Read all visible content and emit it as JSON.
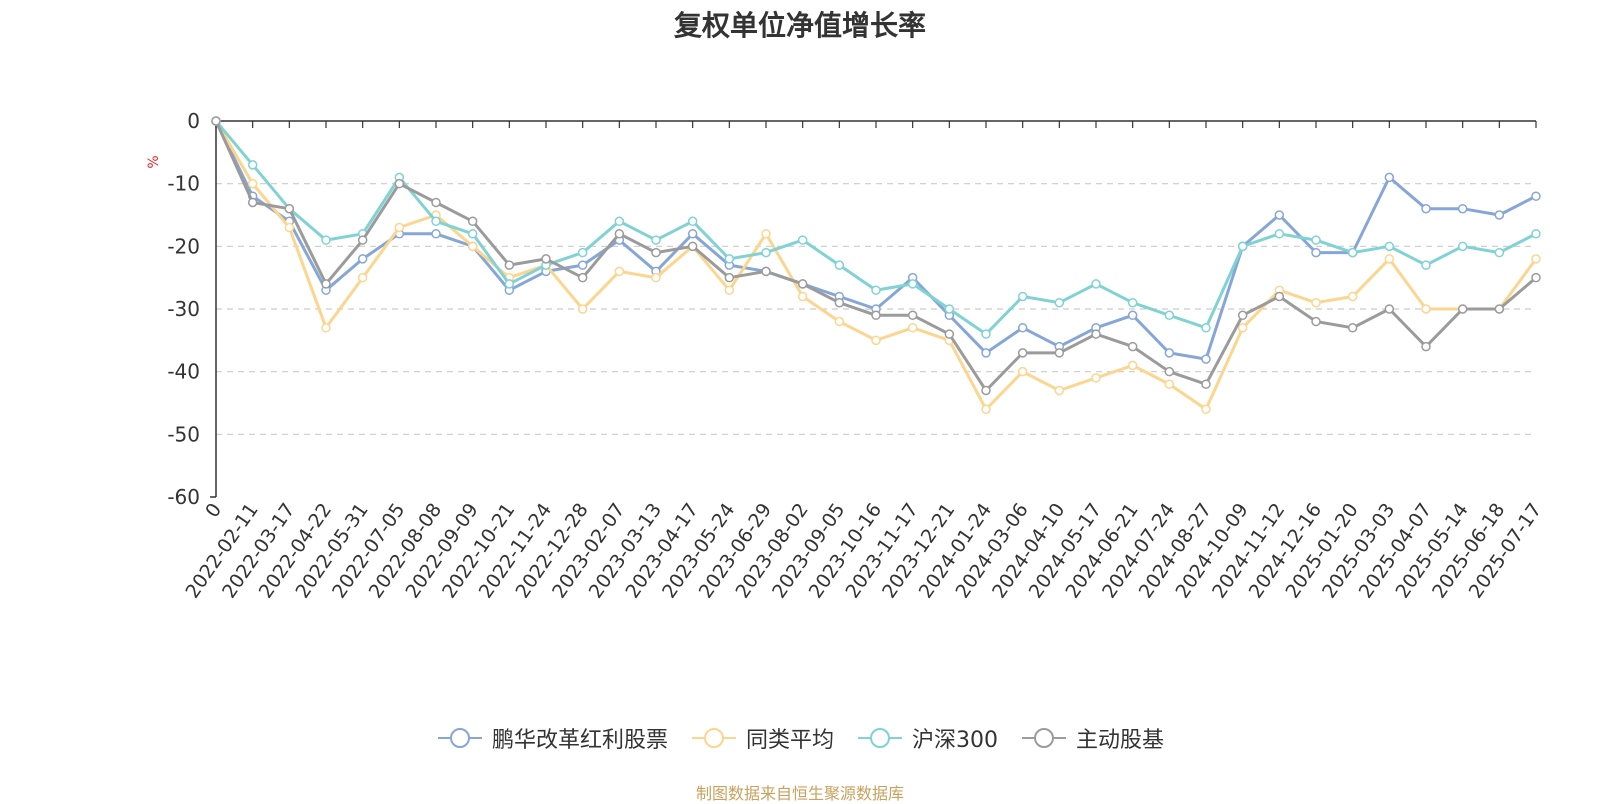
{
  "chart_data": {
    "type": "line",
    "title": "复权单位净值增长率",
    "ylabel": "%",
    "ylim": [
      -60,
      0
    ],
    "yticks": [
      0,
      -10,
      -20,
      -30,
      -40,
      -50,
      -60
    ],
    "grid": true,
    "legend_position": "bottom",
    "x_tick_labels": [
      "0",
      "2022-02-11",
      "2022-03-17",
      "2022-04-22",
      "2022-05-31",
      "2022-07-05",
      "2022-08-08",
      "2022-09-09",
      "2022-10-21",
      "2022-11-24",
      "2022-12-28",
      "2023-02-07",
      "2023-03-13",
      "2023-04-17",
      "2023-05-24",
      "2023-06-29",
      "2023-08-02",
      "2023-09-05",
      "2023-10-16",
      "2023-11-17",
      "2023-12-21",
      "2024-01-24",
      "2024-03-06",
      "2024-04-10",
      "2024-05-17",
      "2024-06-21",
      "2024-07-24",
      "2024-08-27",
      "2024-10-09",
      "2024-11-12",
      "2024-12-16",
      "2025-01-20",
      "2025-03-03",
      "2025-04-07",
      "2025-05-14",
      "2025-06-18",
      "2025-07-17"
    ],
    "series": [
      {
        "name": "鹏华改革红利股票",
        "color": "#86a6d8",
        "values": [
          0,
          -12,
          -16,
          -27,
          -22,
          -18,
          -18,
          -20,
          -27,
          -24,
          -23,
          -19,
          -24,
          -18,
          -23,
          -24,
          -26,
          -28,
          -30,
          -25,
          -31,
          -37,
          -33,
          -36,
          -33,
          -31,
          -37,
          -38,
          -20,
          -15,
          -21,
          -21,
          -9,
          -14,
          -14,
          -15,
          -12
        ]
      },
      {
        "name": "同类平均",
        "color": "#fcd58f",
        "values": [
          0,
          -10,
          -17,
          -33,
          -25,
          -17,
          -15,
          -20,
          -25,
          -23,
          -30,
          -24,
          -25,
          -20,
          -27,
          -18,
          -28,
          -32,
          -35,
          -33,
          -35,
          -46,
          -40,
          -43,
          -41,
          -39,
          -42,
          -46,
          -33,
          -27,
          -29,
          -28,
          -22,
          -30,
          -30,
          -30,
          -22
        ]
      },
      {
        "name": "沪深300",
        "color": "#80d2d3",
        "values": [
          0,
          -7,
          -14,
          -19,
          -18,
          -9,
          -16,
          -18,
          -26,
          -23,
          -21,
          -16,
          -19,
          -16,
          -22,
          -21,
          -19,
          -23,
          -27,
          -26,
          -30,
          -34,
          -28,
          -29,
          -26,
          -29,
          -31,
          -33,
          -20,
          -18,
          -19,
          -21,
          -20,
          -23,
          -20,
          -21,
          -18
        ]
      },
      {
        "name": "主动股基",
        "color": "#9b9b9b",
        "values": [
          0,
          -13,
          -14,
          -26,
          -19,
          -10,
          -13,
          -16,
          -23,
          -22,
          -25,
          -18,
          -21,
          -20,
          -25,
          -24,
          -26,
          -29,
          -31,
          -31,
          -34,
          -43,
          -37,
          -37,
          -34,
          -36,
          -40,
          -42,
          -31,
          -28,
          -32,
          -33,
          -30,
          -36,
          -30,
          -30,
          -25
        ]
      }
    ]
  },
  "source_note": "制图数据来自恒生聚源数据库"
}
